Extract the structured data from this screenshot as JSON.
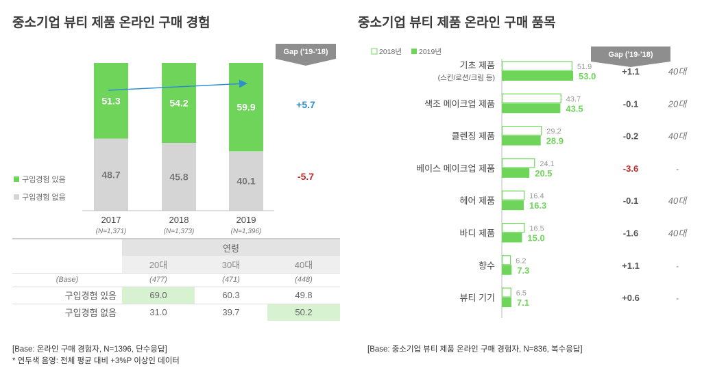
{
  "left": {
    "title": "중소기업 뷰티 제품 온라인 구매 경험",
    "gap_header": "Gap ('19-'18)",
    "legend": {
      "yes": "구입경험 있음",
      "no": "구입경험 없음"
    },
    "gap_yes": "+5.7",
    "gap_no": "-5.7",
    "table": {
      "group_header": "연령",
      "cols": [
        "20대",
        "30대",
        "40대"
      ],
      "base_label": "(Base)",
      "base": [
        "(477)",
        "(471)",
        "(448)"
      ],
      "row_yes_label": "구입경험 있음",
      "row_yes": [
        "69.0",
        "60.3",
        "49.8"
      ],
      "row_no_label": "구입경험 없음",
      "row_no": [
        "31.0",
        "39.7",
        "50.2"
      ]
    },
    "notes": [
      "[Base: 온라인 구매 경험자, N=1396, 단수응답]",
      "* 연두색 음영: 전체 평균 대비 +3%P 이상인 데이터"
    ]
  },
  "right": {
    "title": "중소기업 뷰티 제품 온라인 구매 품목",
    "gap_header": "Gap ('19-'18)",
    "legend": [
      "2018년",
      "2019년"
    ],
    "note": "[Base: 중소기업 뷰티 제품 온라인 구매 경험자, N=836, 복수응답]"
  },
  "colors": {
    "green": "#6fd45a",
    "gray": "#d5d5d5",
    "blue": "#2e8fd0",
    "red": "#c0282a",
    "gapbox": "#8e8e8e"
  },
  "chart_data": [
    {
      "type": "bar",
      "stacked": true,
      "categories": [
        "2017",
        "2018",
        "2019"
      ],
      "category_sublabels": [
        "(N=1,371)",
        "(N=1,373)",
        "(N=1,396)"
      ],
      "series": [
        {
          "name": "구입경험 있음",
          "values": [
            51.3,
            54.2,
            59.9
          ]
        },
        {
          "name": "구입경험 없음",
          "values": [
            48.7,
            45.8,
            40.1
          ]
        }
      ],
      "ylim": [
        0,
        100
      ]
    },
    {
      "type": "bar",
      "orientation": "horizontal",
      "categories": [
        "기초 제품",
        "색조 메이크업 제품",
        "클렌징 제품",
        "베이스 메이크업 제품",
        "헤어 제품",
        "바디 제품",
        "향수",
        "뷰티 기기"
      ],
      "category_sublabels": [
        "(스킨/로션/크림 등)",
        "",
        "",
        "",
        "",
        "",
        "",
        ""
      ],
      "series": [
        {
          "name": "2018년",
          "values": [
            51.9,
            43.7,
            29.2,
            24.1,
            16.4,
            16.5,
            6.2,
            6.5
          ]
        },
        {
          "name": "2019년",
          "values": [
            53.0,
            43.5,
            28.9,
            20.5,
            16.3,
            15.0,
            7.3,
            7.1
          ]
        }
      ],
      "gap": [
        "+1.1",
        "-0.1",
        "-0.2",
        "-3.6",
        "-0.1",
        "-1.6",
        "+1.1",
        "+0.6"
      ],
      "top_age": [
        "40대",
        "20대",
        "40대",
        "-",
        "40대",
        "40대",
        "-",
        "-"
      ],
      "ylim": [
        0,
        60
      ]
    }
  ]
}
